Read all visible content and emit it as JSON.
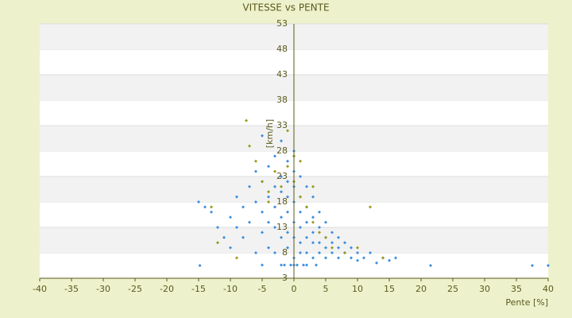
{
  "chart_data": {
    "type": "scatter",
    "title": "VITESSE vs PENTE",
    "x_label": "Pente [%]",
    "y_label": "[km/h]",
    "xlim": [
      -40,
      40
    ],
    "xticks": [
      -40,
      -35,
      -30,
      -25,
      -20,
      -15,
      -10,
      -5,
      0,
      5,
      10,
      15,
      20,
      25,
      30,
      35,
      40
    ],
    "ylim": [
      3,
      53
    ],
    "yticks": [
      3,
      8,
      13,
      18,
      23,
      28,
      33,
      38,
      43,
      48,
      53
    ],
    "grid": true,
    "series": [
      {
        "color": "#3a8ede",
        "x": [
          -15,
          -14,
          -13,
          -12,
          -11,
          -10,
          -10,
          -9,
          -9,
          -8,
          -8,
          -7,
          -7,
          -6,
          -6,
          -6,
          -5,
          -5,
          -5,
          -5,
          -4,
          -4,
          -4,
          -4,
          -3,
          -3,
          -3,
          -3,
          -3,
          -2,
          -2,
          -2,
          -2,
          -2,
          -1,
          -1,
          -1,
          -1,
          -1,
          -1,
          0,
          0,
          0,
          0,
          0,
          0,
          0,
          1,
          1,
          1,
          1,
          1,
          1,
          2,
          2,
          2,
          2,
          2,
          3,
          3,
          3,
          3,
          3,
          4,
          4,
          4,
          4,
          5,
          5,
          5,
          5,
          6,
          6,
          6,
          7,
          7,
          7,
          8,
          8,
          9,
          9,
          10,
          10,
          11,
          12,
          13,
          14,
          15,
          16,
          -2,
          0,
          2,
          -0.5,
          0.5,
          1.5,
          3.5,
          -1.5,
          21.5,
          37.5,
          40,
          -14.8,
          -5
        ],
        "values": [
          18,
          17,
          16,
          13,
          11,
          15,
          9,
          19,
          13,
          17,
          11,
          21,
          14,
          24,
          18,
          8,
          22,
          16,
          12,
          31,
          25,
          19,
          14,
          9,
          27,
          21,
          17,
          13,
          8,
          30,
          23,
          20,
          15,
          11,
          26,
          22,
          19,
          16,
          12,
          9,
          28,
          24,
          21,
          18,
          14,
          11,
          7,
          23,
          19,
          16,
          13,
          10,
          8,
          21,
          17,
          14,
          11,
          8,
          19,
          15,
          12,
          10,
          7,
          16,
          13,
          10,
          8,
          14,
          11,
          9,
          7,
          12,
          10,
          8,
          11,
          9,
          7,
          10,
          8,
          9,
          7,
          8,
          6.5,
          7,
          8,
          6,
          7,
          6.5,
          7,
          5.6,
          5.6,
          5.6,
          5.6,
          5.6,
          5.6,
          5.6,
          5.6,
          5.5,
          5.5,
          5.5,
          5.5,
          5.6
        ]
      },
      {
        "color": "#9a9a1a",
        "x": [
          -7.5,
          -7,
          -6,
          -5,
          -4,
          -3,
          -2,
          -1,
          0,
          0,
          1,
          2,
          3,
          4,
          5,
          6,
          8,
          10,
          12,
          14,
          -13,
          -12,
          -9,
          -4,
          -1,
          1,
          3
        ],
        "values": [
          34,
          29,
          26,
          22,
          20,
          24,
          21,
          25,
          27,
          22,
          19,
          17,
          14,
          12,
          11,
          9,
          8,
          9,
          17,
          7,
          17,
          10,
          7,
          18,
          32,
          26,
          21
        ]
      }
    ]
  }
}
